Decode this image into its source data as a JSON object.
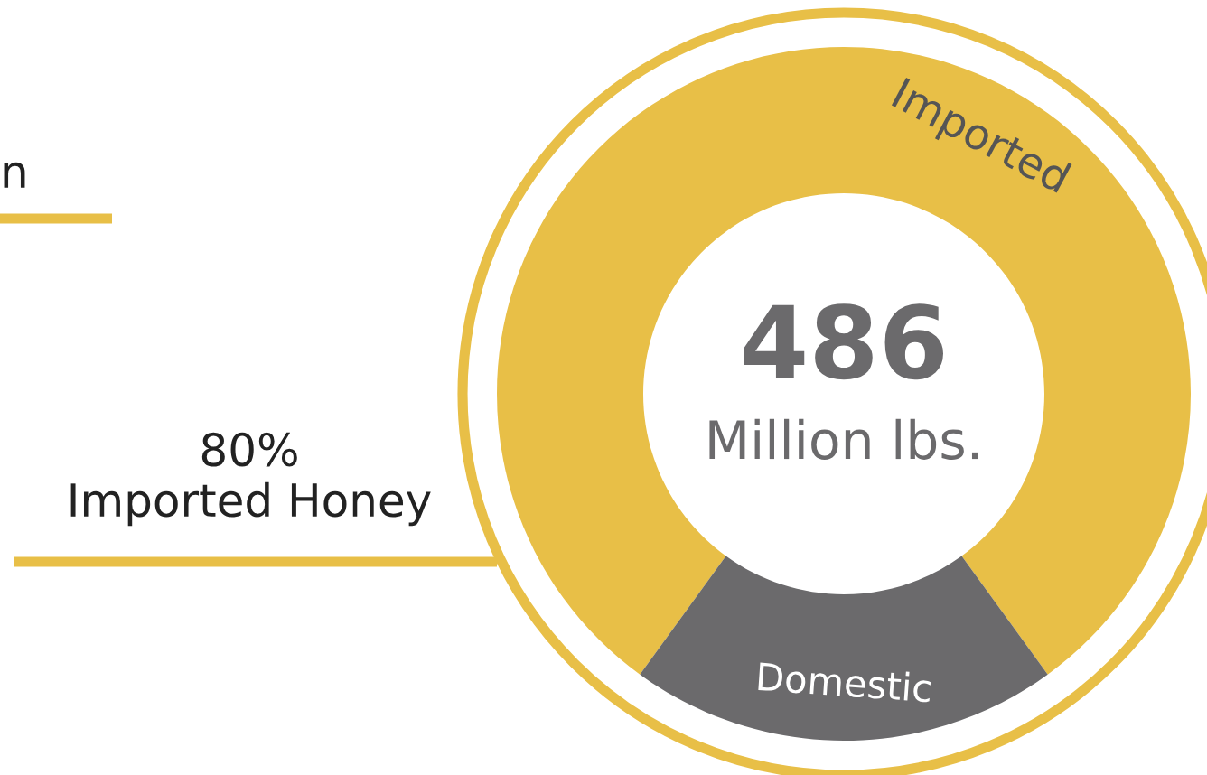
{
  "chart_data": {
    "type": "donut",
    "categories": [
      "Imported",
      "Domestic"
    ],
    "values": [
      80,
      20
    ],
    "colors": [
      "#e8bf47",
      "#6b6a6c"
    ],
    "annotations": [
      "486",
      "Million lbs.",
      "80%\nImported Honey",
      "n"
    ]
  }
}
